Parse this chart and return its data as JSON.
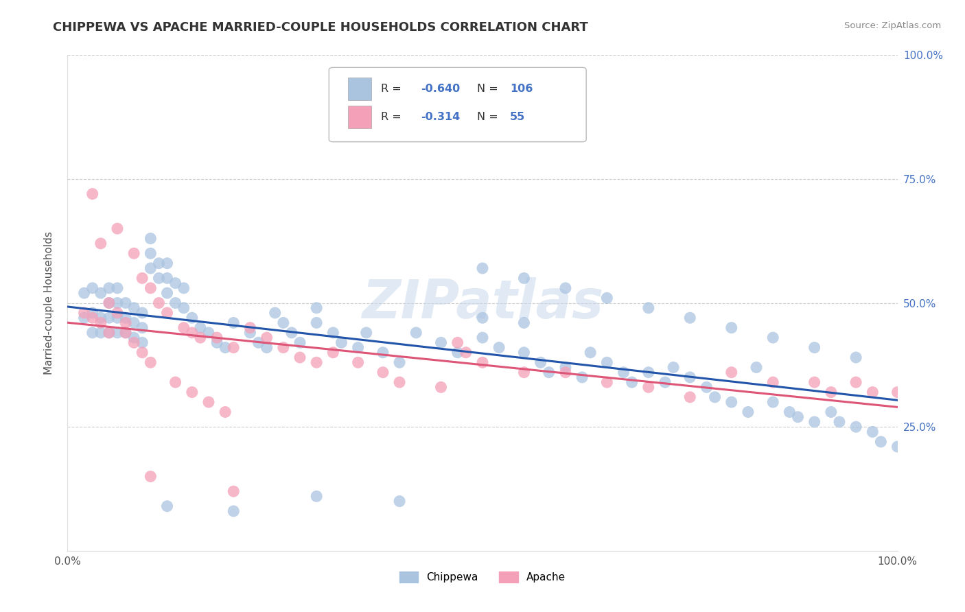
{
  "title": "CHIPPEWA VS APACHE MARRIED-COUPLE HOUSEHOLDS CORRELATION CHART",
  "source": "Source: ZipAtlas.com",
  "ylabel": "Married-couple Households",
  "xlim": [
    0,
    1
  ],
  "ylim": [
    0,
    1
  ],
  "xticks": [
    0.0,
    0.25,
    0.5,
    0.75,
    1.0
  ],
  "yticks": [
    0.0,
    0.25,
    0.5,
    0.75,
    1.0
  ],
  "xtick_labels": [
    "0.0%",
    "",
    "",
    "",
    "100.0%"
  ],
  "ytick_labels_right": [
    "",
    "25.0%",
    "50.0%",
    "75.0%",
    "100.0%"
  ],
  "chippewa_color": "#aac4e0",
  "apache_color": "#f4a0b8",
  "chippewa_line_color": "#2255aa",
  "apache_line_color": "#dd5577",
  "legend_label1": "Chippewa",
  "legend_label2": "Apache",
  "watermark": "ZIPatlas",
  "background_color": "#ffffff",
  "chippewa_x": [
    0.02,
    0.02,
    0.03,
    0.03,
    0.03,
    0.04,
    0.04,
    0.04,
    0.05,
    0.05,
    0.05,
    0.05,
    0.06,
    0.06,
    0.06,
    0.06,
    0.07,
    0.07,
    0.07,
    0.08,
    0.08,
    0.08,
    0.09,
    0.09,
    0.09,
    0.1,
    0.1,
    0.1,
    0.11,
    0.11,
    0.12,
    0.12,
    0.12,
    0.13,
    0.13,
    0.14,
    0.14,
    0.15,
    0.16,
    0.17,
    0.18,
    0.19,
    0.2,
    0.22,
    0.23,
    0.24,
    0.25,
    0.26,
    0.27,
    0.28,
    0.3,
    0.3,
    0.32,
    0.33,
    0.35,
    0.36,
    0.38,
    0.4,
    0.42,
    0.45,
    0.47,
    0.5,
    0.5,
    0.52,
    0.55,
    0.57,
    0.58,
    0.6,
    0.62,
    0.63,
    0.65,
    0.67,
    0.68,
    0.7,
    0.72,
    0.73,
    0.75,
    0.77,
    0.78,
    0.8,
    0.82,
    0.83,
    0.85,
    0.87,
    0.88,
    0.9,
    0.92,
    0.93,
    0.95,
    0.97,
    0.98,
    1.0,
    0.5,
    0.55,
    0.6,
    0.65,
    0.7,
    0.75,
    0.8,
    0.85,
    0.9,
    0.95,
    0.3,
    0.4,
    0.12,
    0.2,
    0.55
  ],
  "chippewa_y": [
    0.47,
    0.52,
    0.44,
    0.48,
    0.53,
    0.44,
    0.47,
    0.52,
    0.44,
    0.47,
    0.5,
    0.53,
    0.44,
    0.47,
    0.5,
    0.53,
    0.44,
    0.47,
    0.5,
    0.43,
    0.46,
    0.49,
    0.42,
    0.45,
    0.48,
    0.57,
    0.6,
    0.63,
    0.55,
    0.58,
    0.52,
    0.55,
    0.58,
    0.5,
    0.54,
    0.49,
    0.53,
    0.47,
    0.45,
    0.44,
    0.42,
    0.41,
    0.46,
    0.44,
    0.42,
    0.41,
    0.48,
    0.46,
    0.44,
    0.42,
    0.46,
    0.49,
    0.44,
    0.42,
    0.41,
    0.44,
    0.4,
    0.38,
    0.44,
    0.42,
    0.4,
    0.47,
    0.43,
    0.41,
    0.4,
    0.38,
    0.36,
    0.37,
    0.35,
    0.4,
    0.38,
    0.36,
    0.34,
    0.36,
    0.34,
    0.37,
    0.35,
    0.33,
    0.31,
    0.3,
    0.28,
    0.37,
    0.3,
    0.28,
    0.27,
    0.26,
    0.28,
    0.26,
    0.25,
    0.24,
    0.22,
    0.21,
    0.57,
    0.55,
    0.53,
    0.51,
    0.49,
    0.47,
    0.45,
    0.43,
    0.41,
    0.39,
    0.11,
    0.1,
    0.09,
    0.08,
    0.46
  ],
  "apache_x": [
    0.02,
    0.03,
    0.03,
    0.04,
    0.04,
    0.05,
    0.05,
    0.06,
    0.06,
    0.07,
    0.07,
    0.08,
    0.08,
    0.09,
    0.09,
    0.1,
    0.1,
    0.11,
    0.12,
    0.13,
    0.14,
    0.15,
    0.16,
    0.17,
    0.18,
    0.19,
    0.2,
    0.22,
    0.24,
    0.26,
    0.28,
    0.3,
    0.32,
    0.35,
    0.38,
    0.4,
    0.45,
    0.47,
    0.48,
    0.5,
    0.55,
    0.6,
    0.65,
    0.7,
    0.75,
    0.8,
    0.85,
    0.9,
    0.92,
    0.95,
    0.97,
    1.0,
    0.1,
    0.15,
    0.2
  ],
  "apache_y": [
    0.48,
    0.72,
    0.47,
    0.62,
    0.46,
    0.5,
    0.44,
    0.48,
    0.65,
    0.46,
    0.44,
    0.42,
    0.6,
    0.4,
    0.55,
    0.38,
    0.53,
    0.5,
    0.48,
    0.34,
    0.45,
    0.32,
    0.43,
    0.3,
    0.43,
    0.28,
    0.41,
    0.45,
    0.43,
    0.41,
    0.39,
    0.38,
    0.4,
    0.38,
    0.36,
    0.34,
    0.33,
    0.42,
    0.4,
    0.38,
    0.36,
    0.36,
    0.34,
    0.33,
    0.31,
    0.36,
    0.34,
    0.34,
    0.32,
    0.34,
    0.32,
    0.32,
    0.15,
    0.44,
    0.12
  ]
}
